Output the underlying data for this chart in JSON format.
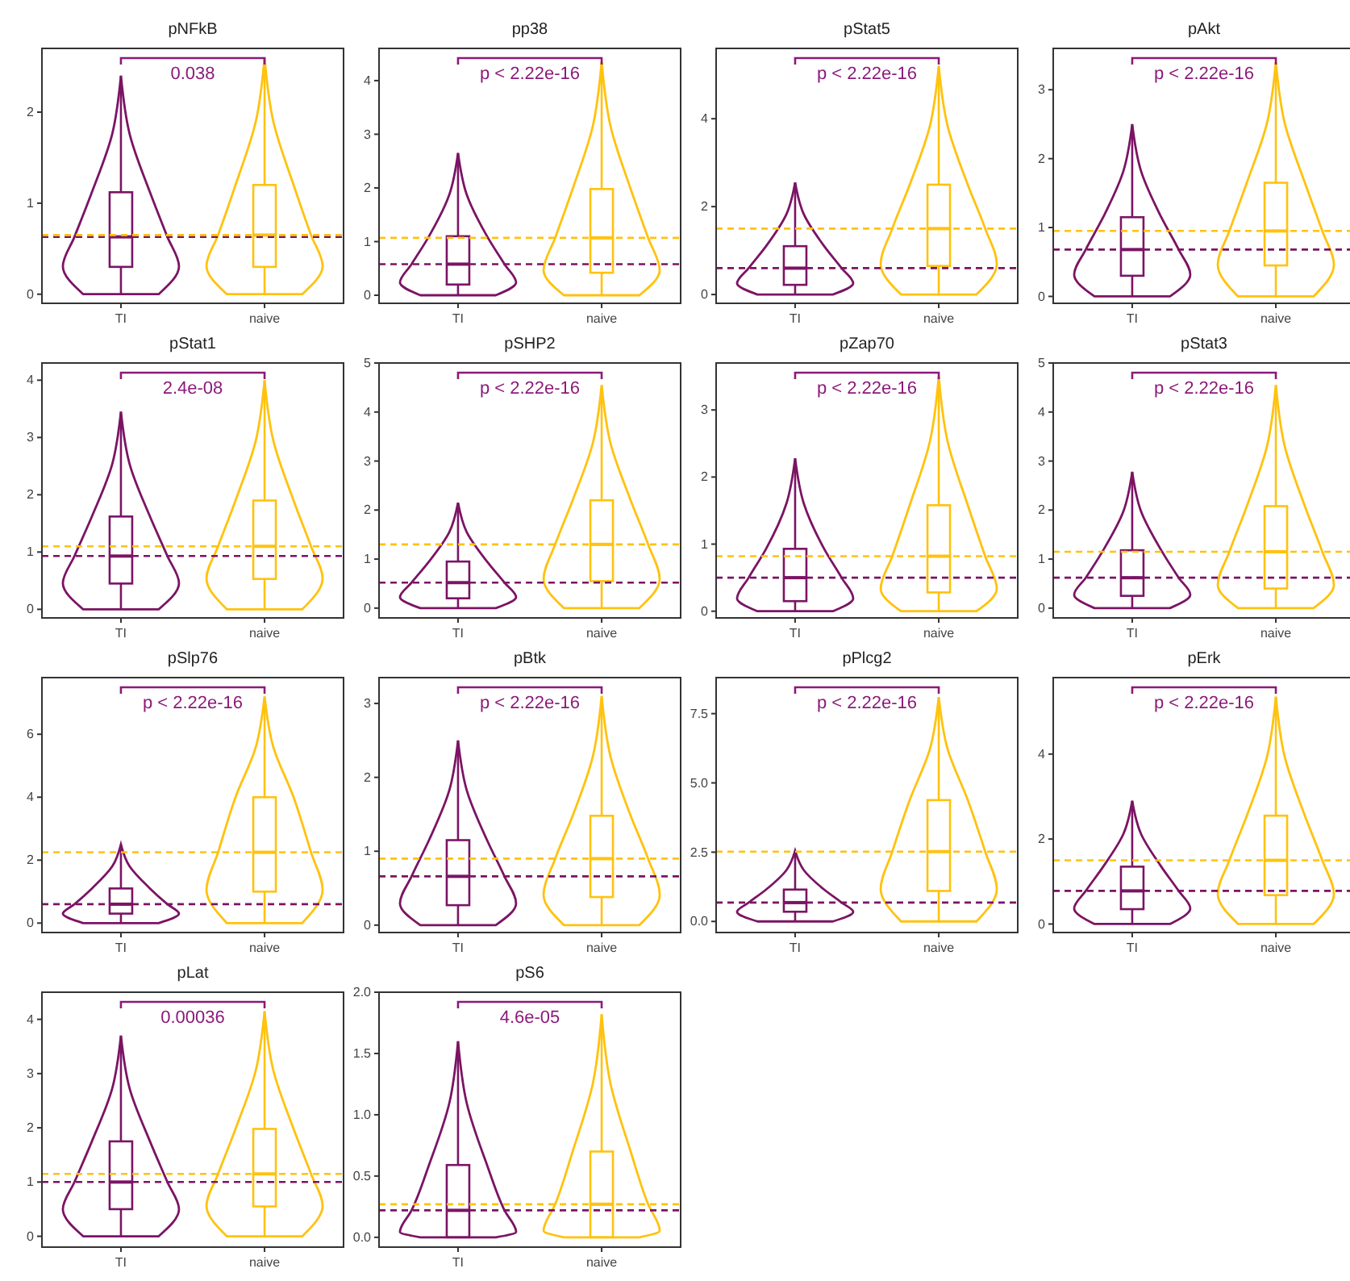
{
  "chart_data": [
    {
      "type": "box",
      "title": "pNFkB",
      "categories": [
        "TI",
        "naive"
      ],
      "colors": [
        "#7b1464",
        "#ffc20e"
      ],
      "ylim": [
        -0.1,
        2.7
      ],
      "yticks": [
        0,
        1,
        2
      ],
      "boxes": [
        {
          "low": 0,
          "q1": 0.3,
          "median": 0.63,
          "q3": 1.12,
          "high": 2.4
        },
        {
          "low": 0,
          "q1": 0.3,
          "median": 0.65,
          "q3": 1.2,
          "high": 2.6
        }
      ],
      "ref_lines": [
        {
          "axis": "y",
          "value": 0.63,
          "color": "#7b1464",
          "line_style": "dashed"
        },
        {
          "axis": "y",
          "value": 0.65,
          "color": "#ffc20e",
          "line_style": "dashed"
        }
      ],
      "annotations": [
        "0.038"
      ]
    },
    {
      "type": "box",
      "title": "pp38",
      "categories": [
        "TI",
        "naive"
      ],
      "colors": [
        "#7b1464",
        "#ffc20e"
      ],
      "ylim": [
        -0.15,
        4.6
      ],
      "yticks": [
        0,
        1,
        2,
        3,
        4
      ],
      "boxes": [
        {
          "low": 0,
          "q1": 0.2,
          "median": 0.58,
          "q3": 1.1,
          "high": 2.65
        },
        {
          "low": 0,
          "q1": 0.42,
          "median": 1.07,
          "q3": 1.98,
          "high": 4.35
        }
      ],
      "ref_lines": [
        {
          "axis": "y",
          "value": 0.58,
          "color": "#7b1464",
          "line_style": "dashed"
        },
        {
          "axis": "y",
          "value": 1.07,
          "color": "#ffc20e",
          "line_style": "dashed"
        }
      ],
      "annotations": [
        "p < 2.22e-16"
      ]
    },
    {
      "type": "box",
      "title": "pStat5",
      "categories": [
        "TI",
        "naive"
      ],
      "colors": [
        "#7b1464",
        "#ffc20e"
      ],
      "ylim": [
        -0.2,
        5.6
      ],
      "yticks": [
        0,
        2,
        4
      ],
      "boxes": [
        {
          "low": 0,
          "q1": 0.22,
          "median": 0.6,
          "q3": 1.1,
          "high": 2.55
        },
        {
          "low": 0,
          "q1": 0.65,
          "median": 1.5,
          "q3": 2.5,
          "high": 5.2
        }
      ],
      "ref_lines": [
        {
          "axis": "y",
          "value": 0.6,
          "color": "#7b1464",
          "line_style": "dashed"
        },
        {
          "axis": "y",
          "value": 1.5,
          "color": "#ffc20e",
          "line_style": "dashed"
        }
      ],
      "annotations": [
        "p < 2.22e-16"
      ]
    },
    {
      "type": "box",
      "title": "pAkt",
      "categories": [
        "TI",
        "naive"
      ],
      "colors": [
        "#7b1464",
        "#ffc20e"
      ],
      "ylim": [
        -0.1,
        3.6
      ],
      "yticks": [
        0,
        1,
        2,
        3
      ],
      "boxes": [
        {
          "low": 0,
          "q1": 0.3,
          "median": 0.68,
          "q3": 1.15,
          "high": 2.5
        },
        {
          "low": 0,
          "q1": 0.45,
          "median": 0.95,
          "q3": 1.65,
          "high": 3.4
        }
      ],
      "ref_lines": [
        {
          "axis": "y",
          "value": 0.68,
          "color": "#7b1464",
          "line_style": "dashed"
        },
        {
          "axis": "y",
          "value": 0.95,
          "color": "#ffc20e",
          "line_style": "dashed"
        }
      ],
      "annotations": [
        "p < 2.22e-16"
      ]
    },
    {
      "type": "box",
      "title": "pStat1",
      "categories": [
        "TI",
        "naive"
      ],
      "colors": [
        "#7b1464",
        "#ffc20e"
      ],
      "ylim": [
        -0.15,
        4.3
      ],
      "yticks": [
        0,
        1,
        2,
        3,
        4
      ],
      "boxes": [
        {
          "low": 0,
          "q1": 0.45,
          "median": 0.93,
          "q3": 1.62,
          "high": 3.45
        },
        {
          "low": 0,
          "q1": 0.53,
          "median": 1.1,
          "q3": 1.9,
          "high": 4.0
        }
      ],
      "ref_lines": [
        {
          "axis": "y",
          "value": 0.93,
          "color": "#7b1464",
          "line_style": "dashed"
        },
        {
          "axis": "y",
          "value": 1.1,
          "color": "#ffc20e",
          "line_style": "dashed"
        }
      ],
      "annotations": [
        "2.4e-08"
      ]
    },
    {
      "type": "box",
      "title": "pSHP2",
      "categories": [
        "TI",
        "naive"
      ],
      "colors": [
        "#7b1464",
        "#ffc20e"
      ],
      "ylim": [
        -0.2,
        5
      ],
      "yticks": [
        0,
        1,
        2,
        3,
        4,
        5
      ],
      "boxes": [
        {
          "low": 0,
          "q1": 0.2,
          "median": 0.52,
          "q3": 0.95,
          "high": 2.15
        },
        {
          "low": 0,
          "q1": 0.55,
          "median": 1.3,
          "q3": 2.2,
          "high": 4.55
        }
      ],
      "ref_lines": [
        {
          "axis": "y",
          "value": 0.52,
          "color": "#7b1464",
          "line_style": "dashed"
        },
        {
          "axis": "y",
          "value": 1.3,
          "color": "#ffc20e",
          "line_style": "dashed"
        }
      ],
      "annotations": [
        "p < 2.22e-16"
      ]
    },
    {
      "type": "box",
      "title": "pZap70",
      "categories": [
        "TI",
        "naive"
      ],
      "colors": [
        "#7b1464",
        "#ffc20e"
      ],
      "ylim": [
        -0.1,
        3.7
      ],
      "yticks": [
        0,
        1,
        2,
        3
      ],
      "boxes": [
        {
          "low": 0,
          "q1": 0.15,
          "median": 0.5,
          "q3": 0.93,
          "high": 2.28
        },
        {
          "low": 0,
          "q1": 0.28,
          "median": 0.82,
          "q3": 1.58,
          "high": 3.5
        }
      ],
      "ref_lines": [
        {
          "axis": "y",
          "value": 0.5,
          "color": "#7b1464",
          "line_style": "dashed"
        },
        {
          "axis": "y",
          "value": 0.82,
          "color": "#ffc20e",
          "line_style": "dashed"
        }
      ],
      "annotations": [
        "p < 2.22e-16"
      ]
    },
    {
      "type": "box",
      "title": "pStat3",
      "categories": [
        "TI",
        "naive"
      ],
      "colors": [
        "#7b1464",
        "#ffc20e"
      ],
      "ylim": [
        -0.2,
        5
      ],
      "yticks": [
        0,
        1,
        2,
        3,
        4,
        5
      ],
      "boxes": [
        {
          "low": 0,
          "q1": 0.25,
          "median": 0.62,
          "q3": 1.18,
          "high": 2.78
        },
        {
          "low": 0,
          "q1": 0.4,
          "median": 1.15,
          "q3": 2.08,
          "high": 4.55
        }
      ],
      "ref_lines": [
        {
          "axis": "y",
          "value": 0.62,
          "color": "#7b1464",
          "line_style": "dashed"
        },
        {
          "axis": "y",
          "value": 1.15,
          "color": "#ffc20e",
          "line_style": "dashed"
        }
      ],
      "annotations": [
        "p < 2.22e-16"
      ]
    },
    {
      "type": "box",
      "title": "pSlp76",
      "categories": [
        "TI",
        "naive"
      ],
      "colors": [
        "#7b1464",
        "#ffc20e"
      ],
      "ylim": [
        -0.3,
        7.8
      ],
      "yticks": [
        0,
        2,
        4,
        6
      ],
      "boxes": [
        {
          "low": 0,
          "q1": 0.3,
          "median": 0.6,
          "q3": 1.1,
          "high": 2.5
        },
        {
          "low": 0,
          "q1": 1.0,
          "median": 2.25,
          "q3": 4.0,
          "high": 7.2
        }
      ],
      "ref_lines": [
        {
          "axis": "y",
          "value": 0.6,
          "color": "#7b1464",
          "line_style": "dashed"
        },
        {
          "axis": "y",
          "value": 2.25,
          "color": "#ffc20e",
          "line_style": "dashed"
        }
      ],
      "annotations": [
        "p < 2.22e-16"
      ]
    },
    {
      "type": "box",
      "title": "pBtk",
      "categories": [
        "TI",
        "naive"
      ],
      "colors": [
        "#7b1464",
        "#ffc20e"
      ],
      "ylim": [
        -0.1,
        3.35
      ],
      "yticks": [
        0,
        1,
        2,
        3
      ],
      "boxes": [
        {
          "low": 0,
          "q1": 0.27,
          "median": 0.66,
          "q3": 1.15,
          "high": 2.5
        },
        {
          "low": 0,
          "q1": 0.38,
          "median": 0.9,
          "q3": 1.48,
          "high": 3.1
        }
      ],
      "ref_lines": [
        {
          "axis": "y",
          "value": 0.66,
          "color": "#7b1464",
          "line_style": "dashed"
        },
        {
          "axis": "y",
          "value": 0.9,
          "color": "#ffc20e",
          "line_style": "dashed"
        }
      ],
      "annotations": [
        "p < 2.22e-16"
      ]
    },
    {
      "type": "box",
      "title": "pPlcg2",
      "categories": [
        "TI",
        "naive"
      ],
      "colors": [
        "#7b1464",
        "#ffc20e"
      ],
      "ylim": [
        -0.4,
        8.8
      ],
      "yticks": [
        {
          "value": 0,
          "label": "0.0"
        },
        {
          "value": 2.5,
          "label": "2.5"
        },
        {
          "value": 5,
          "label": "5.0"
        },
        {
          "value": 7.5,
          "label": "7.5"
        }
      ],
      "boxes": [
        {
          "low": 0,
          "q1": 0.35,
          "median": 0.68,
          "q3": 1.15,
          "high": 2.55
        },
        {
          "low": 0,
          "q1": 1.1,
          "median": 2.52,
          "q3": 4.38,
          "high": 8.1
        }
      ],
      "ref_lines": [
        {
          "axis": "y",
          "value": 0.68,
          "color": "#7b1464",
          "line_style": "dashed"
        },
        {
          "axis": "y",
          "value": 2.52,
          "color": "#ffc20e",
          "line_style": "dashed"
        }
      ],
      "annotations": [
        "p < 2.22e-16"
      ]
    },
    {
      "type": "box",
      "title": "pErk",
      "categories": [
        "TI",
        "naive"
      ],
      "colors": [
        "#7b1464",
        "#ffc20e"
      ],
      "ylim": [
        -0.2,
        5.8
      ],
      "yticks": [
        0,
        2,
        4
      ],
      "boxes": [
        {
          "low": 0,
          "q1": 0.35,
          "median": 0.78,
          "q3": 1.35,
          "high": 2.9
        },
        {
          "low": 0,
          "q1": 0.68,
          "median": 1.5,
          "q3": 2.55,
          "high": 5.35
        }
      ],
      "ref_lines": [
        {
          "axis": "y",
          "value": 0.78,
          "color": "#7b1464",
          "line_style": "dashed"
        },
        {
          "axis": "y",
          "value": 1.5,
          "color": "#ffc20e",
          "line_style": "dashed"
        }
      ],
      "annotations": [
        "p < 2.22e-16"
      ]
    },
    {
      "type": "box",
      "title": "pLat",
      "categories": [
        "TI",
        "naive"
      ],
      "colors": [
        "#7b1464",
        "#ffc20e"
      ],
      "ylim": [
        -0.2,
        4.5
      ],
      "yticks": [
        0,
        1,
        2,
        3,
        4
      ],
      "boxes": [
        {
          "low": 0,
          "q1": 0.5,
          "median": 1.0,
          "q3": 1.75,
          "high": 3.7
        },
        {
          "low": 0,
          "q1": 0.55,
          "median": 1.15,
          "q3": 1.98,
          "high": 4.15
        }
      ],
      "ref_lines": [
        {
          "axis": "y",
          "value": 1.0,
          "color": "#7b1464",
          "line_style": "dashed"
        },
        {
          "axis": "y",
          "value": 1.15,
          "color": "#ffc20e",
          "line_style": "dashed"
        }
      ],
      "annotations": [
        "0.00036"
      ]
    },
    {
      "type": "box",
      "title": "pS6",
      "categories": [
        "TI",
        "naive"
      ],
      "colors": [
        "#7b1464",
        "#ffc20e"
      ],
      "ylim": [
        -0.08,
        2.0
      ],
      "yticks": [
        {
          "value": 0,
          "label": "0.0"
        },
        {
          "value": 0.5,
          "label": "0.5"
        },
        {
          "value": 1,
          "label": "1.0"
        },
        {
          "value": 1.5,
          "label": "1.5"
        },
        {
          "value": 2,
          "label": "2.0"
        }
      ],
      "boxes": [
        {
          "low": 0,
          "q1": 0,
          "median": 0.22,
          "q3": 0.59,
          "high": 1.6
        },
        {
          "low": 0,
          "q1": 0,
          "median": 0.27,
          "q3": 0.7,
          "high": 1.82
        }
      ],
      "ref_lines": [
        {
          "axis": "y",
          "value": 0.22,
          "color": "#7b1464",
          "line_style": "dashed"
        },
        {
          "axis": "y",
          "value": 0.27,
          "color": "#ffc20e",
          "line_style": "dashed"
        }
      ],
      "annotations": [
        "4.6e-05"
      ]
    }
  ]
}
